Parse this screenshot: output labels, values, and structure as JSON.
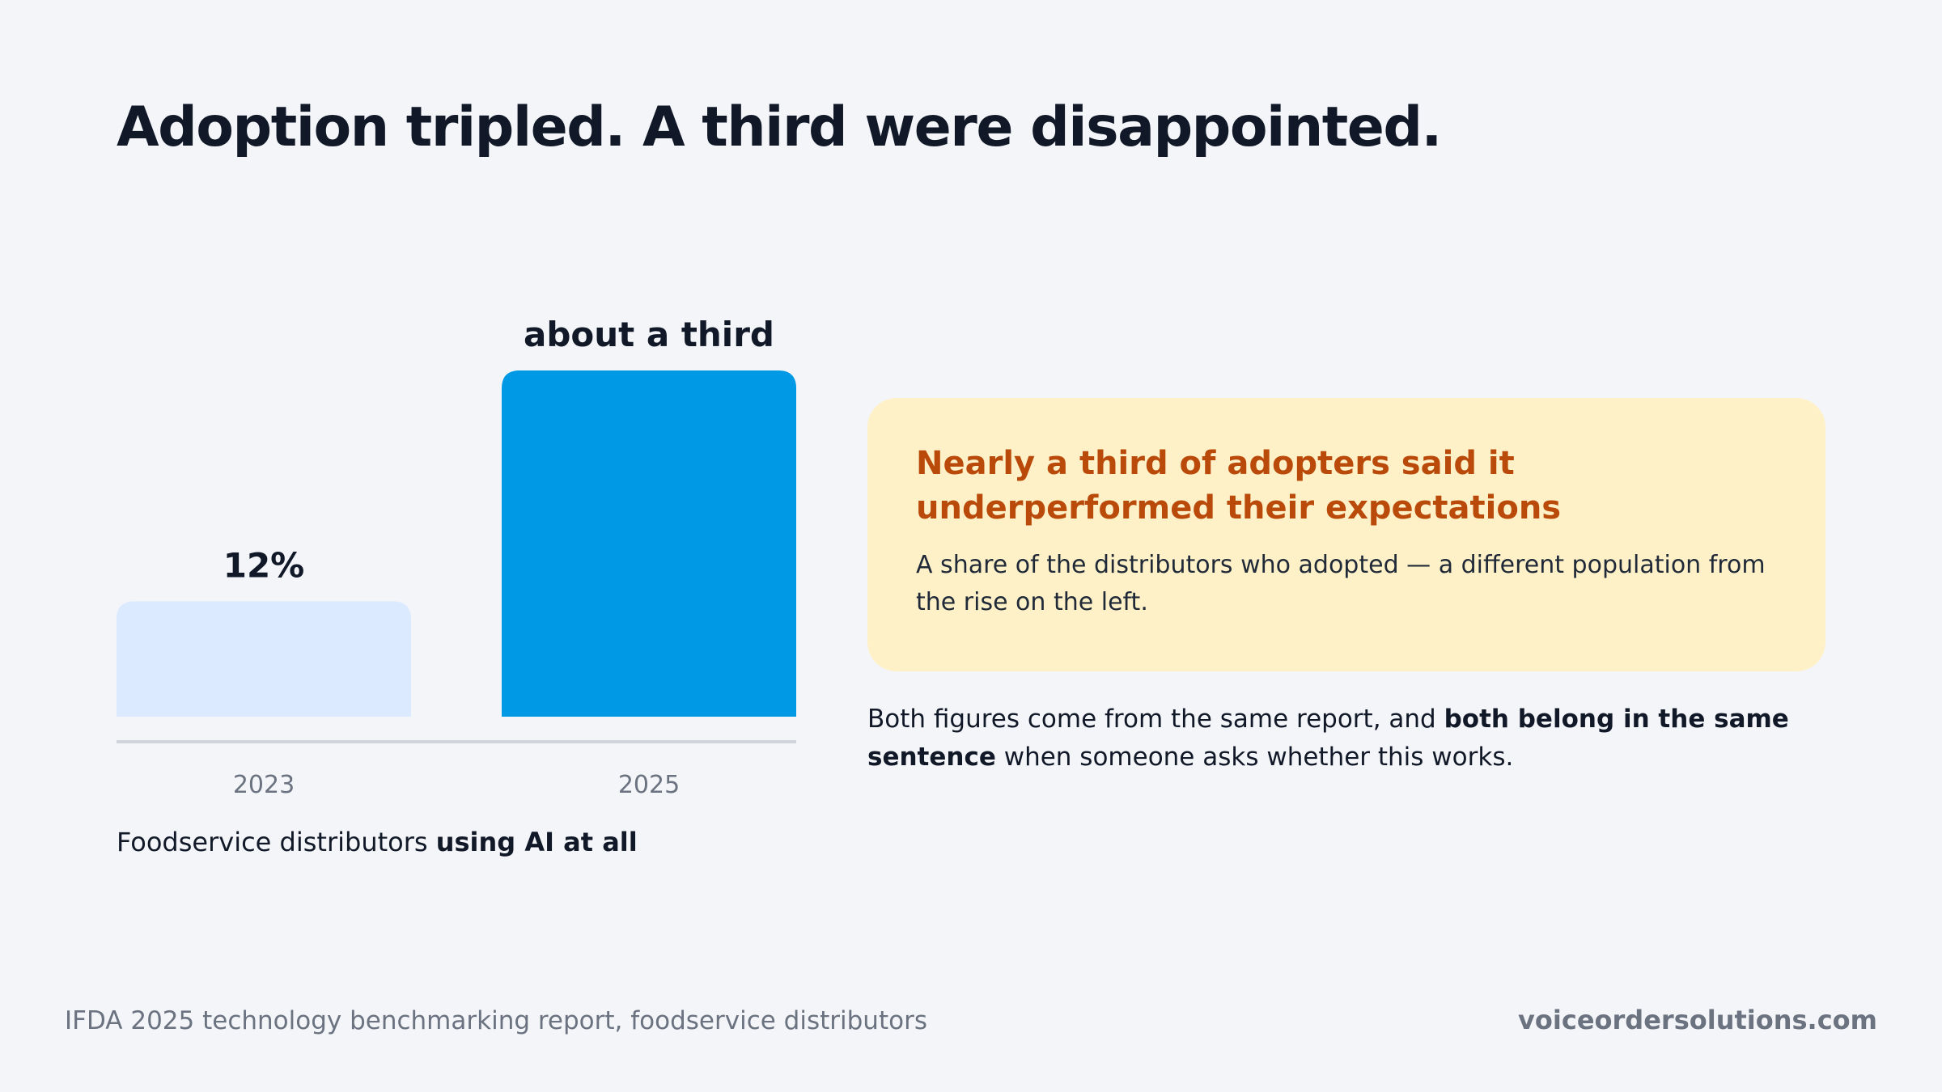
{
  "slide": {
    "title": "Adoption tripled. A third were disappointed."
  },
  "chart_data": {
    "type": "bar",
    "categories": [
      "2023",
      "2025"
    ],
    "values": [
      12,
      36
    ],
    "value_labels": [
      "12%",
      "about a third"
    ],
    "bar_colors": [
      "#dbeafe",
      "#0099e5"
    ],
    "axis_color": "#d1d5db",
    "ylim": [
      0,
      36
    ],
    "grid": false,
    "legend": "none",
    "title": "",
    "xlabel": "",
    "ylabel": ""
  },
  "chart_caption": {
    "prefix": "Foodservice distributors ",
    "emphasis": "using AI at all"
  },
  "callout": {
    "heading": "Nearly a third of adopters said it underperformed their expectations",
    "body": "A share of the distributors who adopted — a different population from the rise on the left.",
    "background": "#fff1c7",
    "heading_color": "#b94a0a"
  },
  "note": {
    "part1": "Both figures come from the same report, and ",
    "emphasis": "both belong in the same sentence",
    "part2": " when someone asks whether this works."
  },
  "footer": {
    "source": "IFDA 2025 technology benchmarking report, foodservice distributors",
    "brand": "voiceordersolutions.com"
  }
}
